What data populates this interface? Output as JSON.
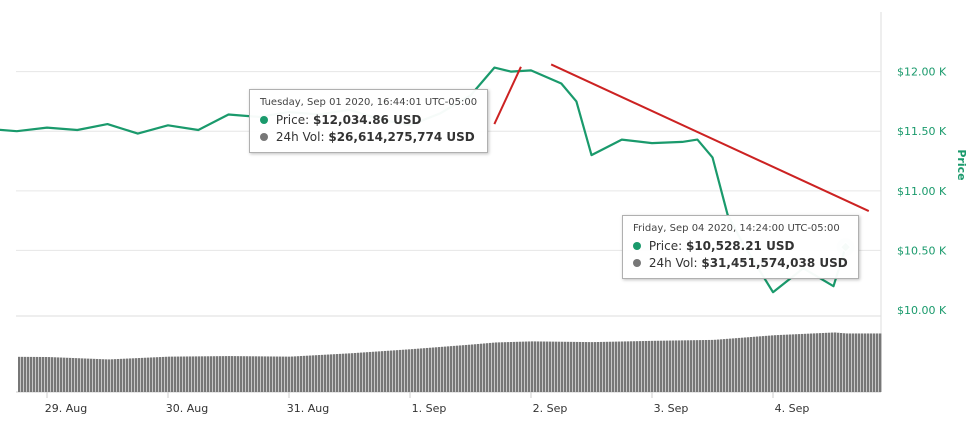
{
  "chart_data": {
    "type": "line",
    "title": "",
    "ylabel": "Price",
    "series": [
      {
        "name": "Price",
        "color": "#1a9a6c",
        "x": [
          "Aug 28 12:00",
          "Aug 28 18:00",
          "Aug 29 00:00",
          "Aug 29 06:00",
          "Aug 29 12:00",
          "Aug 29 18:00",
          "Aug 30 00:00",
          "Aug 30 06:00",
          "Aug 30 12:00",
          "Aug 30 18:00",
          "Aug 31 00:00",
          "Aug 31 06:00",
          "Aug 31 12:00",
          "Aug 31 18:00",
          "Sep 01 00:00",
          "Sep 01 06:00",
          "Sep 01 12:00",
          "Sep 01 16:44",
          "Sep 01 20:00",
          "Sep 02 00:00",
          "Sep 02 06:00",
          "Sep 02 09:00",
          "Sep 02 12:00",
          "Sep 02 18:00",
          "Sep 03 00:00",
          "Sep 03 06:00",
          "Sep 03 09:00",
          "Sep 03 12:00",
          "Sep 03 15:00",
          "Sep 03 18:00",
          "Sep 04 00:00",
          "Sep 04 06:00",
          "Sep 04 12:00",
          "Sep 04 14:24"
        ],
        "values": [
          11520,
          11500,
          11530,
          11510,
          11560,
          11480,
          11550,
          11510,
          11640,
          11620,
          11660,
          11640,
          11680,
          11600,
          11550,
          11650,
          11800,
          12034,
          12000,
          12010,
          11900,
          11750,
          11300,
          11430,
          11400,
          11410,
          11430,
          11280,
          10800,
          10560,
          10150,
          10350,
          10200,
          10528
        ]
      },
      {
        "name": "24h Vol",
        "color": "#777777",
        "x": [
          "Aug 28 12:00",
          "Aug 29 00:00",
          "Aug 29 12:00",
          "Aug 30 00:00",
          "Aug 30 12:00",
          "Aug 31 00:00",
          "Aug 31 12:00",
          "Sep 01 00:00",
          "Sep 01 12:00",
          "Sep 01 16:44",
          "Sep 02 00:00",
          "Sep 02 12:00",
          "Sep 03 00:00",
          "Sep 03 12:00",
          "Sep 04 00:00",
          "Sep 04 12:00",
          "Sep 04 14:24"
        ],
        "values": [
          19000000000,
          18800000000,
          17500000000,
          19000000000,
          19300000000,
          19000000000,
          20800000000,
          23000000000,
          25500000000,
          26614275774,
          27200000000,
          26800000000,
          27500000000,
          28000000000,
          30500000000,
          32000000000,
          31451574038
        ]
      }
    ],
    "x_ticks": [
      "29. Aug",
      "30. Aug",
      "31. Aug",
      "1. Sep",
      "2. Sep",
      "3. Sep",
      "4. Sep"
    ],
    "y_ticks": [
      "$10.00 K",
      "$10.50 K",
      "$11.00 K",
      "$11.50 K",
      "$12.00 K"
    ],
    "ylim": [
      9950,
      12500
    ],
    "grid": true,
    "annotations": [
      {
        "color": "#cc2222",
        "from": [
          "Sep 01 16:44",
          11560
        ],
        "to": [
          "Sep 01 22:00",
          12040
        ]
      },
      {
        "color": "#cc2222",
        "from": [
          "Sep 02 04:00",
          12060
        ],
        "to": [
          "Sep 04 19:00",
          10830
        ]
      }
    ]
  },
  "tooltips": [
    {
      "header": "Tuesday, Sep 01 2020, 16:44:01 UTC-05:00",
      "price_label": "Price:",
      "price_value": "$12,034.86 USD",
      "vol_label": "24h Vol:",
      "vol_value": "$26,614,275,774 USD"
    },
    {
      "header": "Friday, Sep 04 2020, 14:24:00 UTC-05:00",
      "price_label": "Price:",
      "price_value": "$10,528.21 USD",
      "vol_label": "24h Vol:",
      "vol_value": "$31,451,574,038 USD"
    }
  ],
  "colors": {
    "price": "#1a9a6c",
    "volume": "#777777",
    "trend": "#cc2222"
  }
}
